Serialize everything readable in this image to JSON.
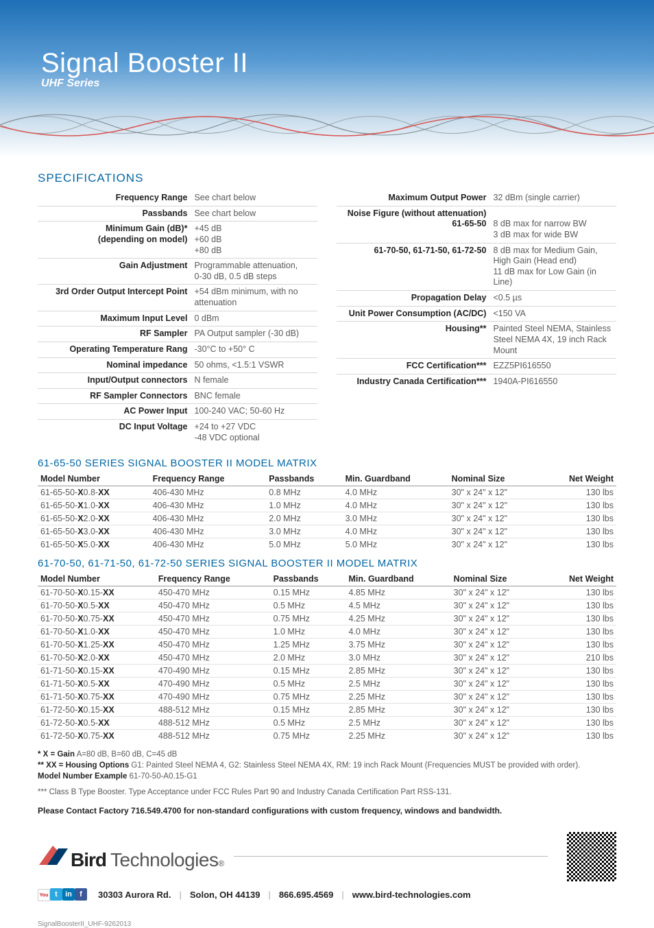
{
  "hero": {
    "title": "Signal Booster II",
    "subtitle": "UHF Series"
  },
  "section_title": "SPECIFICATIONS",
  "specs_left": [
    {
      "label": "Frequency Range",
      "value": "See chart below"
    },
    {
      "label": "Passbands",
      "value": "See chart below"
    },
    {
      "label": "Minimum Gain (dB)*\n(depending on model)",
      "value": "+45 dB\n+60 dB\n+80 dB"
    },
    {
      "label": "Gain Adjustment",
      "value": "Programmable attenuation,\n0-30 dB, 0.5 dB steps"
    },
    {
      "label": "3rd Order Output Intercept Point",
      "value": "+54 dBm minimum, with no\nattenuation"
    },
    {
      "label": "Maximum Input Level",
      "value": "0 dBm"
    },
    {
      "label": "RF Sampler",
      "value": "PA Output sampler (-30 dB)"
    },
    {
      "label": "Operating Temperature Rang",
      "value": "-30°C to +50° C"
    },
    {
      "label": "Nominal impedance",
      "value": "50 ohms, <1.5:1 VSWR"
    },
    {
      "label": "Input/Output connectors",
      "value": "N female"
    },
    {
      "label": "RF Sampler Connectors",
      "value": "BNC female"
    },
    {
      "label": "AC Power Input",
      "value": "100-240 VAC; 50-60 Hz"
    },
    {
      "label": "DC Input Voltage",
      "value": "+24 to +27 VDC\n-48 VDC optional"
    }
  ],
  "specs_right": [
    {
      "label": "Maximum Output Power",
      "value": "32 dBm (single carrier)"
    },
    {
      "label": "Noise Figure (without attenuation)\n61-65-50",
      "value": "\n8 dB max for narrow BW\n3 dB max for wide BW"
    },
    {
      "label": "61-70-50, 61-71-50, 61-72-50",
      "value": "8 dB max for Medium Gain,\nHigh Gain (Head end)\n11 dB max for Low Gain (in Line)"
    },
    {
      "label": "Propagation Delay",
      "value": "<0.5 µs"
    },
    {
      "label": "Unit Power Consumption (AC/DC)",
      "value": "<150 VA"
    },
    {
      "label": "Housing**",
      "value": "Painted Steel NEMA, Stainless\nSteel NEMA 4X, 19 inch Rack\nMount"
    },
    {
      "label": "FCC Certification***",
      "value": "EZZ5PI616550"
    },
    {
      "label": "Industry Canada Certification***",
      "value": "1940A-PI616550"
    }
  ],
  "matrix1": {
    "title": "61-65-50 SERIES SIGNAL BOOSTER II MODEL MATRIX",
    "columns": [
      "Model Number",
      "Frequency Range",
      "Passbands",
      "Min. Guardband",
      "Nominal Size",
      "Net Weight"
    ],
    "rows": [
      {
        "model_pre": "61-65-50-",
        "model_mid": "X",
        "model_mid2": "0.8-",
        "model_suf": "XX",
        "freq": "406-430 MHz",
        "pass": "0.8 MHz",
        "guard": "4.0 MHz",
        "size": "30\" x 24\" x 12\"",
        "weight": "130 lbs"
      },
      {
        "model_pre": "61-65-50-",
        "model_mid": "X",
        "model_mid2": "1.0-",
        "model_suf": "XX",
        "freq": "406-430 MHz",
        "pass": "1.0 MHz",
        "guard": "4.0 MHz",
        "size": "30\" x 24\" x 12\"",
        "weight": "130 lbs"
      },
      {
        "model_pre": "61-65-50-",
        "model_mid": "X",
        "model_mid2": "2.0-",
        "model_suf": "XX",
        "freq": "406-430 MHz",
        "pass": "2.0 MHz",
        "guard": "3.0 MHz",
        "size": "30\" x 24\" x 12\"",
        "weight": "130 lbs"
      },
      {
        "model_pre": "61-65-50-",
        "model_mid": "X",
        "model_mid2": "3.0-",
        "model_suf": "XX",
        "freq": "406-430 MHz",
        "pass": "3.0 MHz",
        "guard": "4.0 MHz",
        "size": "30\" x 24\" x 12\"",
        "weight": "130 lbs"
      },
      {
        "model_pre": "61-65-50-",
        "model_mid": "X",
        "model_mid2": "5.0-",
        "model_suf": "XX",
        "freq": "406-430 MHz",
        "pass": "5.0 MHz",
        "guard": "5.0 MHz",
        "size": "30\" x 24\" x 12\"",
        "weight": "130 lbs"
      }
    ]
  },
  "matrix2": {
    "title": "61-70-50, 61-71-50, 61-72-50 SERIES SIGNAL BOOSTER II MODEL MATRIX",
    "columns": [
      "Model Number",
      "Frequency Range",
      "Passbands",
      "Min. Guardband",
      "Nominal Size",
      "Net Weight"
    ],
    "rows": [
      {
        "model_pre": "61-70-50-",
        "model_mid": "X",
        "model_mid2": "0.15-",
        "model_suf": "XX",
        "freq": "450-470 MHz",
        "pass": "0.15 MHz",
        "guard": "4.85 MHz",
        "size": "30\" x 24\" x 12\"",
        "weight": "130 lbs"
      },
      {
        "model_pre": "61-70-50-",
        "model_mid": "X",
        "model_mid2": "0.5-",
        "model_suf": "XX",
        "freq": "450-470 MHz",
        "pass": "0.5 MHz",
        "guard": "4.5 MHz",
        "size": "30\" x 24\" x 12\"",
        "weight": "130 lbs"
      },
      {
        "model_pre": "61-70-50-",
        "model_mid": "X",
        "model_mid2": "0.75-",
        "model_suf": "XX",
        "freq": "450-470 MHz",
        "pass": "0.75 MHz",
        "guard": "4.25 MHz",
        "size": "30\" x 24\" x 12\"",
        "weight": "130 lbs"
      },
      {
        "model_pre": "61-70-50-",
        "model_mid": "X",
        "model_mid2": "1.0-",
        "model_suf": "XX",
        "freq": "450-470 MHz",
        "pass": "1.0 MHz",
        "guard": "4.0 MHz",
        "size": "30\" x 24\" x 12\"",
        "weight": "130 lbs"
      },
      {
        "model_pre": "61-70-50-",
        "model_mid": "X",
        "model_mid2": "1.25-",
        "model_suf": "XX",
        "freq": "450-470 MHz",
        "pass": "1.25 MHz",
        "guard": "3.75 MHz",
        "size": "30\" x 24\" x 12\"",
        "weight": "130 lbs"
      },
      {
        "model_pre": "61-70-50-",
        "model_mid": "X",
        "model_mid2": "2.0-",
        "model_suf": "XX",
        "freq": "450-470 MHz",
        "pass": "2.0 MHz",
        "guard": "3.0 MHz",
        "size": "30\" x 24\" x 12\"",
        "weight": "210 lbs"
      },
      {
        "model_pre": "61-71-50-",
        "model_mid": "X",
        "model_mid2": "0.15-",
        "model_suf": "XX",
        "freq": "470-490 MHz",
        "pass": "0.15 MHz",
        "guard": "2.85 MHz",
        "size": "30\" x 24\" x 12\"",
        "weight": "130 lbs"
      },
      {
        "model_pre": "61-71-50-",
        "model_mid": "X",
        "model_mid2": "0.5-",
        "model_suf": "XX",
        "freq": "470-490 MHz",
        "pass": "0.5 MHz",
        "guard": "2.5 MHz",
        "size": "30\" x 24\" x 12\"",
        "weight": "130 lbs"
      },
      {
        "model_pre": "61-71-50-",
        "model_mid": "X",
        "model_mid2": "0.75-",
        "model_suf": "XX",
        "freq": "470-490 MHz",
        "pass": "0.75 MHz",
        "guard": "2.25 MHz",
        "size": "30\" x 24\" x 12\"",
        "weight": "130 lbs"
      },
      {
        "model_pre": "61-72-50-",
        "model_mid": "X",
        "model_mid2": "0.15-",
        "model_suf": "XX",
        "freq": "488-512 MHz",
        "pass": "0.15 MHz",
        "guard": "2.85 MHz",
        "size": "30\" x 24\" x 12\"",
        "weight": "130 lbs"
      },
      {
        "model_pre": "61-72-50-",
        "model_mid": "X",
        "model_mid2": "0.5-",
        "model_suf": "XX",
        "freq": "488-512 MHz",
        "pass": "0.5 MHz",
        "guard": "2.5 MHz",
        "size": "30\" x 24\" x 12\"",
        "weight": "130 lbs"
      },
      {
        "model_pre": "61-72-50-",
        "model_mid": "X",
        "model_mid2": "0.75-",
        "model_suf": "XX",
        "freq": "488-512 MHz",
        "pass": "0.75 MHz",
        "guard": "2.25 MHz",
        "size": "30\" x 24\" x 12\"",
        "weight": "130 lbs"
      }
    ]
  },
  "footnotes": {
    "l1_strong": "* X = Gain",
    "l1_rest": "  A=80 dB, B=60 dB, C=45 dB",
    "l2_strong": "** XX = Housing Options",
    "l2_rest": " G1: Painted Steel NEMA 4, G2: Stainless Steel NEMA 4X, RM: 19 inch Rack Mount (Frequencies MUST be provided with order).",
    "l3_strong": "Model Number Example",
    "l3_rest": " 61-70-50-A0.15-G1",
    "l4": "*** Class B Type Booster. Type Acceptance under FCC Rules Part 90 and Industry Canada Certification Part RSS-131.",
    "contact": "Please Contact Factory 716.549.4700 for non-standard configurations with custom frequency, windows and bandwidth."
  },
  "footer": {
    "brand_bold": "Bird",
    "brand_light": "Technologies",
    "reg": "®",
    "address": "30303 Aurora Rd.",
    "city": "Solon, OH 44139",
    "phone": "866.695.4569",
    "url": "www.bird-technologies.com",
    "social": [
      {
        "name": "youtube-icon",
        "bg": "#ffffff",
        "fg": "#cc181e",
        "text": "You"
      },
      {
        "name": "twitter-icon",
        "bg": "#2ca7e0",
        "fg": "#fff",
        "text": "t"
      },
      {
        "name": "linkedin-icon",
        "bg": "#0077b5",
        "fg": "#fff",
        "text": "in"
      },
      {
        "name": "facebook-icon",
        "bg": "#3b5998",
        "fg": "#fff",
        "text": "f"
      }
    ]
  },
  "docid": "SignalBoosterII_UHF-9262013",
  "colors": {
    "accent": "#0066a4",
    "wave_red": "#d9534f",
    "wave_grey": "#9aa7ad"
  }
}
